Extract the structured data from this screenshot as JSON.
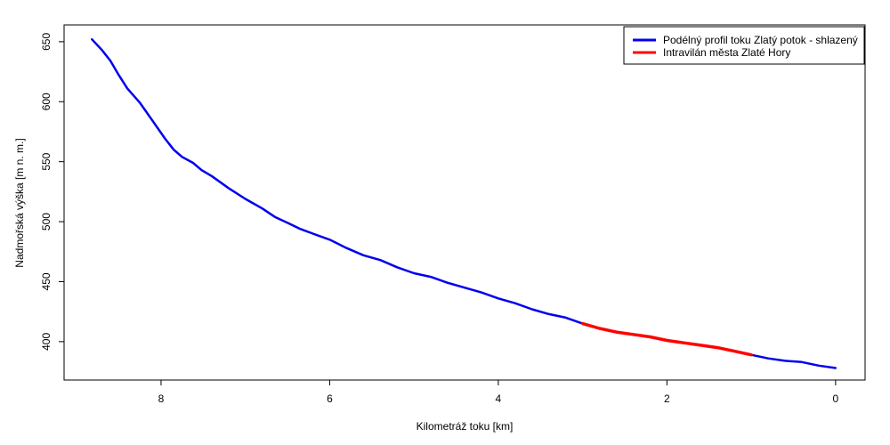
{
  "chart_data": {
    "type": "line",
    "title": "",
    "xlabel": "Kilometráž toku [km]",
    "ylabel": "Nadmořská výška [m n. m.]",
    "xlim": [
      9.15,
      -0.35
    ],
    "ylim": [
      368,
      664
    ],
    "x_reversed": true,
    "x_ticks": [
      8,
      6,
      4,
      2,
      0
    ],
    "y_ticks": [
      400,
      450,
      500,
      550,
      600,
      650
    ],
    "legend_position": "top-right",
    "series": [
      {
        "name": "Podélný profil toku Zlatý potok - shlazený",
        "color": "#0000ee",
        "x": [
          8.82,
          8.7,
          8.6,
          8.5,
          8.4,
          8.25,
          8.1,
          7.95,
          7.85,
          7.75,
          7.62,
          7.52,
          7.4,
          7.2,
          7.0,
          6.8,
          6.65,
          6.5,
          6.35,
          6.2,
          6.0,
          5.8,
          5.6,
          5.4,
          5.2,
          5.0,
          4.8,
          4.6,
          4.4,
          4.2,
          4.0,
          3.8,
          3.6,
          3.4,
          3.2,
          3.0,
          2.8,
          2.6,
          2.4,
          2.2,
          2.0,
          1.8,
          1.6,
          1.4,
          1.2,
          1.0,
          0.8,
          0.6,
          0.4,
          0.2,
          0.0
        ],
        "y": [
          652,
          643,
          634,
          622,
          611,
          599,
          584,
          569,
          560,
          554,
          549,
          543,
          538,
          528,
          519,
          511,
          504,
          499,
          494,
          490,
          485,
          478,
          472,
          468,
          462,
          457,
          454,
          449,
          445,
          441,
          436,
          432,
          427,
          423,
          420,
          415,
          411,
          408,
          406,
          404,
          401,
          399,
          397,
          395,
          392,
          389,
          386,
          384,
          383,
          380,
          378
        ]
      },
      {
        "name": "Intravilán města Zlaté Hory",
        "color": "#ff0000",
        "x": [
          3.0,
          2.8,
          2.6,
          2.4,
          2.2,
          2.0,
          1.8,
          1.6,
          1.4,
          1.2,
          1.0
        ],
        "y": [
          415,
          411,
          408,
          406,
          404,
          401,
          399,
          397,
          395,
          392,
          389
        ]
      }
    ]
  }
}
